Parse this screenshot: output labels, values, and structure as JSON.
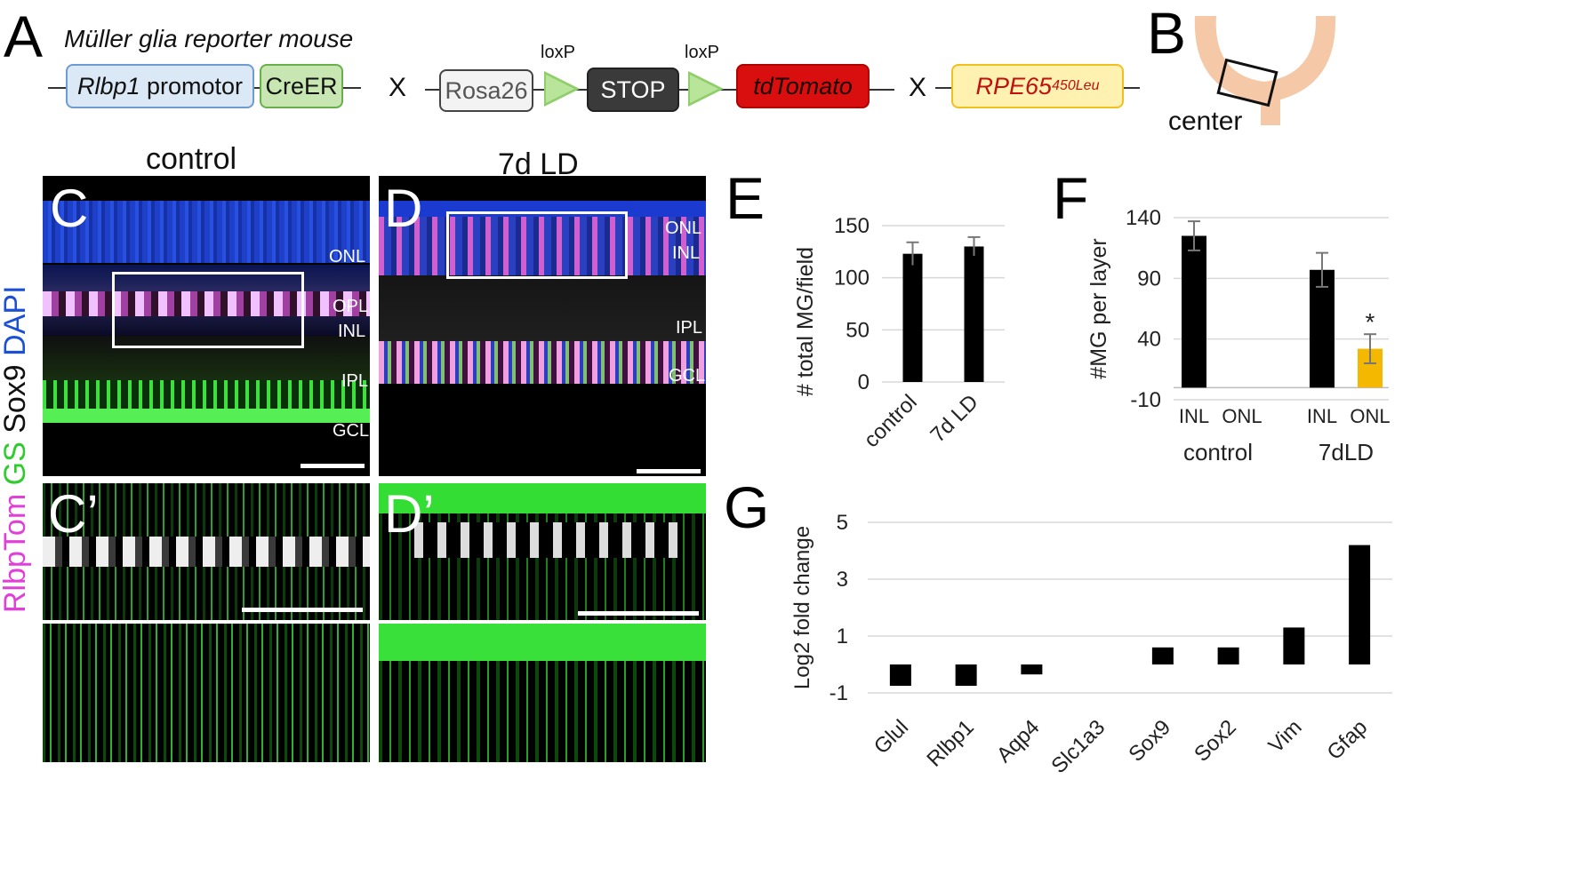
{
  "panelA": {
    "letter": "A",
    "title": "Müller glia reporter mouse",
    "rlbp1_italic": "Rlbp1",
    "rlbp1_rest": " promotor",
    "creer": "CreER",
    "cross1": "X",
    "rosa26": "Rosa26",
    "loxp1": "loxP",
    "stop": "STOP",
    "loxp2": "loxP",
    "tdtomato": "tdTomato",
    "cross2": "X",
    "rpe65": "RPE65",
    "rpe65_sup": "450Leu"
  },
  "panelB": {
    "letter": "B",
    "label": "center"
  },
  "panelC": {
    "letter": "C",
    "letter2": "C’",
    "title": "control",
    "layers": [
      "ONL",
      "OPL",
      "INL",
      "IPL",
      "GCL"
    ]
  },
  "panelD": {
    "letter": "D",
    "letter2": "D’",
    "title": "7d LD",
    "layers": [
      "ONL",
      "INL",
      "IPL",
      "GCL"
    ]
  },
  "stain_label": {
    "rlbptom": "RlbpTom",
    "gs": "GS",
    "sox9": "Sox9",
    "dapi": "DAPI",
    "colors": {
      "rlbptom": "#e040d8",
      "gs": "#2ecc2e",
      "sox9": "#111111",
      "dapi": "#1a4fd6"
    }
  },
  "panelE": {
    "letter": "E"
  },
  "panelF": {
    "letter": "F"
  },
  "panelG": {
    "letter": "G"
  },
  "chart_data": [
    {
      "panel": "E",
      "type": "bar",
      "categories": [
        "control",
        "7d LD"
      ],
      "values": [
        123,
        130
      ],
      "errors": [
        11,
        9
      ],
      "ylabel": "# total MG/field",
      "yticks": [
        0,
        50,
        100,
        150
      ],
      "ylim": [
        0,
        150
      ],
      "bar_color": "#000000",
      "grid": true
    },
    {
      "panel": "F",
      "type": "bar",
      "groups": [
        "control",
        "7dLD"
      ],
      "subcategories": [
        "INL",
        "ONL"
      ],
      "series": [
        {
          "name": "INL",
          "values": [
            125,
            97
          ],
          "errors": [
            12,
            14
          ]
        },
        {
          "name": "ONL",
          "values": [
            0,
            32
          ],
          "errors": [
            0,
            12
          ]
        }
      ],
      "bar_colors": [
        "#000000",
        "#000000",
        "#000000",
        "#f5b800"
      ],
      "ylabel": "#MG per layer",
      "yticks": [
        -10,
        40,
        90,
        140
      ],
      "ylim": [
        -10,
        140
      ],
      "annotation": "*",
      "grid": true
    },
    {
      "panel": "G",
      "type": "bar",
      "categories": [
        "Glul",
        "Rlbp1",
        "Aqp4",
        "Slc1a3",
        "Sox9",
        "Sox2",
        "Vim",
        "Gfap"
      ],
      "values": [
        -0.75,
        -0.75,
        -0.35,
        0,
        0.6,
        0.6,
        1.3,
        4.2
      ],
      "ylabel": "Log2 fold change",
      "yticks": [
        -1,
        1,
        3,
        5
      ],
      "ylim": [
        -1,
        5
      ],
      "bar_color": "#000000",
      "grid": true
    }
  ]
}
